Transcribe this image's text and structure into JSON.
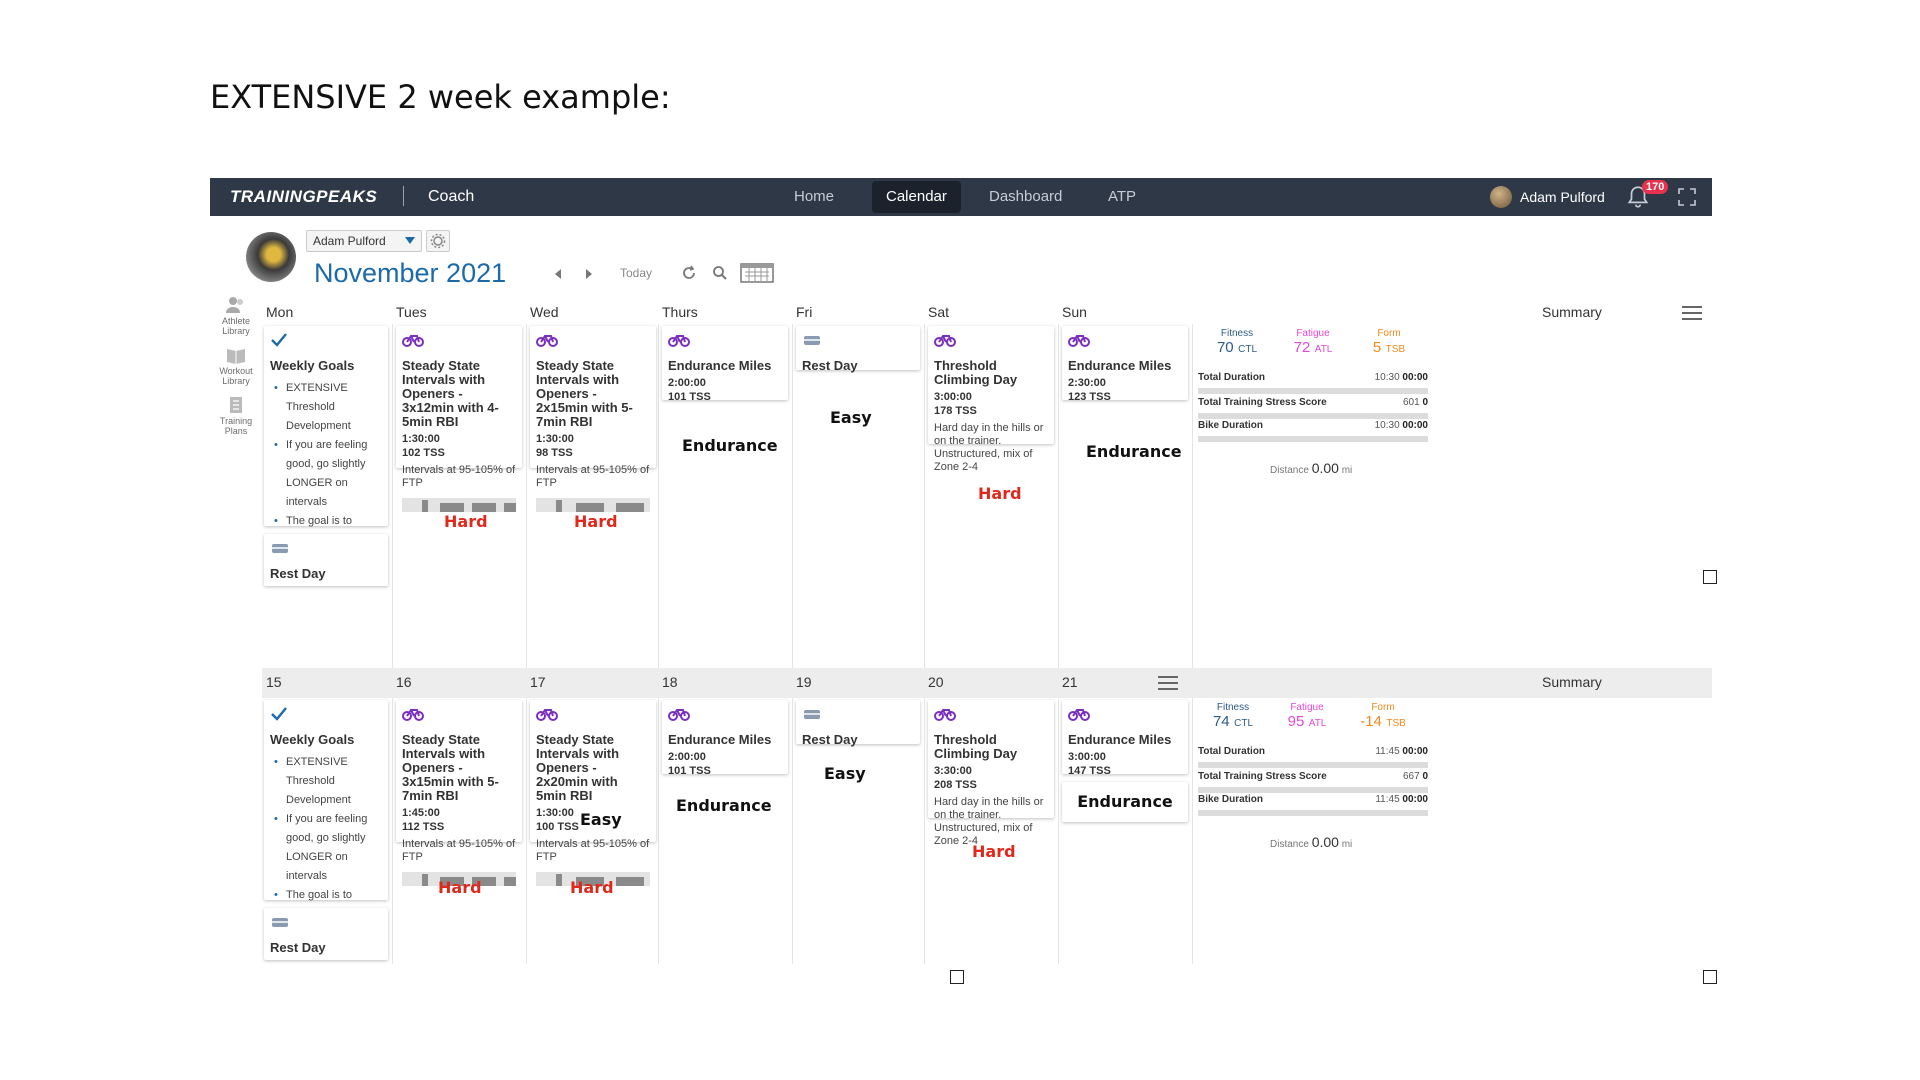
{
  "slide": {
    "title": "EXTENSIVE 2 week example:"
  },
  "topbar": {
    "brand": "TRAININGPEAKS",
    "section": "Coach",
    "nav": [
      {
        "label": "Home",
        "active": false
      },
      {
        "label": "Calendar",
        "active": true
      },
      {
        "label": "Dashboard",
        "active": false
      },
      {
        "label": "ATP",
        "active": false
      }
    ],
    "user_name": "Adam Pulford",
    "notification_count": "170"
  },
  "header": {
    "athlete_select": "Adam Pulford",
    "month_title": "November 2021",
    "today_label": "Today"
  },
  "side_tools": [
    {
      "label_line1": "Athlete",
      "label_line2": "Library",
      "icon": "athlete-library-icon"
    },
    {
      "label_line1": "Workout",
      "label_line2": "Library",
      "icon": "workout-library-icon"
    },
    {
      "label_line1": "Training",
      "label_line2": "Plans",
      "icon": "training-plans-icon"
    }
  ],
  "calendar": {
    "day_headers": [
      "Mon",
      "Tues",
      "Wed",
      "Thurs",
      "Fri",
      "Sat",
      "Sun"
    ],
    "summary_label": "Summary",
    "week2_dates": [
      "15",
      "16",
      "17",
      "18",
      "19",
      "20",
      "21"
    ],
    "weeks": [
      {
        "goals": {
          "title": "Weekly Goals",
          "bullets": [
            "EXTENSIVE Threshold Development",
            "If you are feeling good, go slightly LONGER on intervals",
            "The goal is to increase your TTE"
          ]
        },
        "mon_rest": "Rest Day",
        "tue": {
          "title": "Steady State Intervals with Openers - 3x12min with 4-5min RBI",
          "duration": "1:30:00",
          "tss": "102 TSS",
          "desc": "Intervals at 95-105% of FTP"
        },
        "wed": {
          "title": "Steady State Intervals with Openers - 2x15min with 5-7min RBI",
          "duration": "1:30:00",
          "tss": "98 TSS",
          "desc": "Intervals at 95-105% of FTP"
        },
        "thu": {
          "title": "Endurance Miles",
          "duration": "2:00:00",
          "tss": "101 TSS"
        },
        "fri": {
          "title": "Rest Day"
        },
        "sat": {
          "title": "Threshold Climbing Day",
          "duration": "3:00:00",
          "tss": "178 TSS",
          "desc": "Hard day in the hills or on the trainer. Unstructured, mix of Zone 2-4"
        },
        "sun": {
          "title": "Endurance Miles",
          "duration": "2:30:00",
          "tss": "123 TSS"
        },
        "annotations": {
          "tue": "Hard",
          "wed": "Hard",
          "thu": "Endurance",
          "fri": "Easy",
          "sat": "Hard",
          "sun": "Endurance"
        },
        "summary": {
          "fitness_label": "Fitness",
          "fitness_value": "70",
          "fitness_unit": "CTL",
          "fatigue_label": "Fatigue",
          "fatigue_value": "72",
          "fatigue_unit": "ATL",
          "form_label": "Form",
          "form_value": "5",
          "form_unit": "TSB",
          "total_duration_label": "Total Duration",
          "total_duration_planned": "10:30",
          "total_duration_done": "00:00",
          "tss_label": "Total Training Stress Score",
          "tss_planned": "601",
          "tss_done": "0",
          "bike_label": "Bike Duration",
          "bike_planned": "10:30",
          "bike_done": "00:00",
          "distance_label": "Distance",
          "distance_value": "0.00",
          "distance_unit": "mi"
        }
      },
      {
        "goals": {
          "title": "Weekly Goals",
          "bullets": [
            "EXTENSIVE Threshold Development",
            "If you are feeling good, go slightly LONGER on intervals",
            "The goal is to increase your TTE"
          ]
        },
        "mon_rest": "Rest Day",
        "tue": {
          "title": "Steady State Intervals with Openers - 3x15min with 5-7min RBI",
          "duration": "1:45:00",
          "tss": "112 TSS",
          "desc": "Intervals at 95-105% of FTP"
        },
        "wed": {
          "title": "Steady State Intervals with Openers - 2x20min with 5min RBI",
          "duration": "1:30:00",
          "tss": "100 TSS",
          "desc": "Intervals at 95-105% of FTP"
        },
        "thu": {
          "title": "Endurance Miles",
          "duration": "2:00:00",
          "tss": "101 TSS"
        },
        "fri": {
          "title": "Rest Day"
        },
        "sat": {
          "title": "Threshold Climbing Day",
          "duration": "3:30:00",
          "tss": "208 TSS",
          "desc": "Hard day in the hills or on the trainer. Unstructured, mix of Zone 2-4"
        },
        "sun": {
          "title": "Endurance Miles",
          "duration": "3:00:00",
          "tss": "147 TSS"
        },
        "annotations": {
          "tue": "Hard",
          "wed": "Hard",
          "wed_extra": "Easy",
          "thu": "Endurance",
          "fri": "Easy",
          "sat": "Hard",
          "sun": "Endurance"
        },
        "summary": {
          "fitness_label": "Fitness",
          "fitness_value": "74",
          "fitness_unit": "CTL",
          "fatigue_label": "Fatigue",
          "fatigue_value": "95",
          "fatigue_unit": "ATL",
          "form_label": "Form",
          "form_value": "-14",
          "form_unit": "TSB",
          "total_duration_label": "Total Duration",
          "total_duration_planned": "11:45",
          "total_duration_done": "00:00",
          "tss_label": "Total Training Stress Score",
          "tss_planned": "667",
          "tss_done": "0",
          "bike_label": "Bike Duration",
          "bike_planned": "11:45",
          "bike_done": "00:00",
          "distance_label": "Distance",
          "distance_value": "0.00",
          "distance_unit": "mi"
        }
      }
    ]
  },
  "colors": {
    "topbar": "#2f3846",
    "accent_blue": "#1c6aa8",
    "bike_purple": "#7b2fbe",
    "hard_red": "#e0291c",
    "fatigue_pink": "#e04bd6",
    "form_orange": "#f08a1c"
  }
}
